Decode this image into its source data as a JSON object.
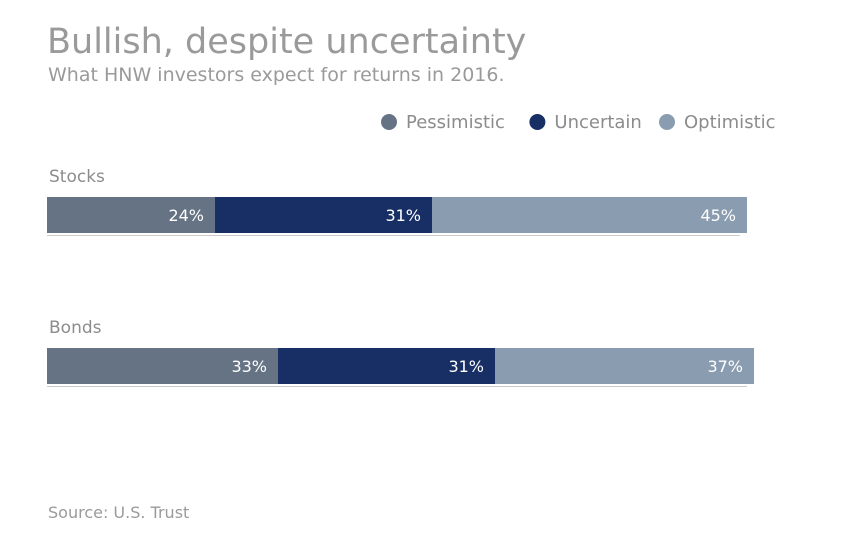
{
  "header": {
    "title": "Bullish, despite uncertainty",
    "subtitle": "What HNW investors expect for returns in 2016."
  },
  "footer": {
    "source": "Source: U.S. Trust"
  },
  "chart_data": {
    "type": "bar",
    "orientation": "horizontal",
    "stacked": true,
    "title": "Bullish, despite uncertainty",
    "subtitle": "What HNW investors expect for returns in 2016.",
    "categories": [
      "Stocks",
      "Bonds"
    ],
    "series": [
      {
        "name": "Pessimistic",
        "color": "#667385",
        "values": [
          24,
          33
        ],
        "labels": [
          "24%",
          "33%"
        ]
      },
      {
        "name": "Uncertain",
        "color": "#182f65",
        "values": [
          31,
          31
        ],
        "labels": [
          "31%",
          "31%"
        ]
      },
      {
        "name": "Optimistic",
        "color": "#8a9cb0",
        "values": [
          45,
          37
        ],
        "labels": [
          "45%",
          "37%"
        ]
      }
    ],
    "xlim": [
      0,
      100
    ],
    "legend": "top-right",
    "grid": false,
    "xlabel": "",
    "ylabel": ""
  }
}
